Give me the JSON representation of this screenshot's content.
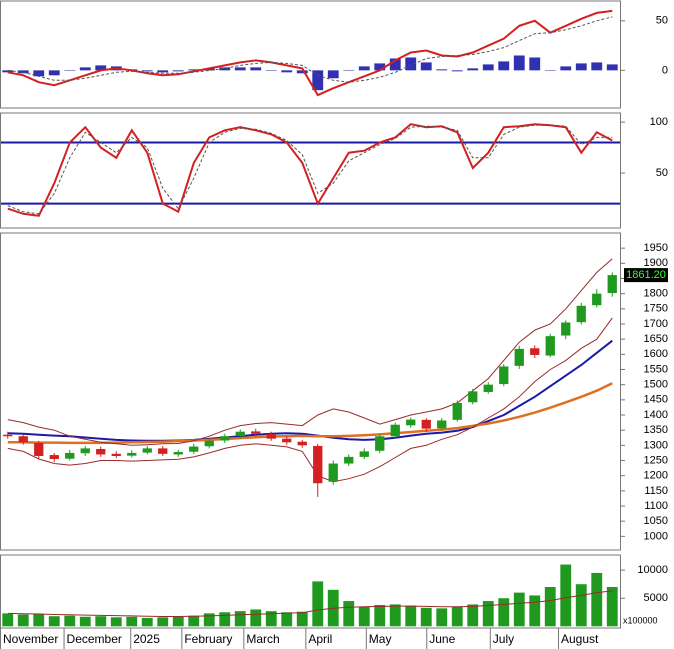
{
  "chart_data": [
    {
      "type": "macd",
      "ylim": [
        -38,
        70
      ],
      "yticks": [
        0,
        50
      ],
      "series": [
        {
          "color": "#d42020",
          "values": [
            -2,
            -5,
            -12,
            -15,
            -10,
            -5,
            0,
            2,
            0,
            -3,
            -5,
            -4,
            -1,
            2,
            5,
            8,
            10,
            8,
            5,
            2,
            -25,
            -18,
            -12,
            -6,
            0,
            10,
            18,
            20,
            15,
            14,
            18,
            25,
            32,
            45,
            50,
            38,
            45,
            52,
            58,
            60
          ]
        },
        {
          "color": "#555555",
          "values": [
            0,
            -2,
            -6,
            -10,
            -10,
            -8,
            -5,
            -2,
            -1,
            -2,
            -3,
            -3,
            -2,
            0,
            2,
            5,
            7,
            8,
            7,
            5,
            -5,
            -10,
            -12,
            -10,
            -7,
            -2,
            5,
            12,
            14,
            15,
            16,
            19,
            23,
            30,
            37,
            38,
            41,
            45,
            50,
            54
          ]
        }
      ],
      "histogram": {
        "color": "#3030b0",
        "values": [
          -2,
          -3,
          -6,
          -5,
          0,
          3,
          5,
          4,
          1,
          -1,
          -2,
          -1,
          1,
          2,
          3,
          3,
          3,
          0,
          -2,
          -3,
          -20,
          -8,
          0,
          4,
          7,
          12,
          13,
          8,
          1,
          -1,
          2,
          6,
          9,
          15,
          13,
          0,
          4,
          7,
          8,
          6
        ]
      }
    },
    {
      "type": "stochastic",
      "ylim": [
        -4,
        109
      ],
      "yticks": [
        50,
        100
      ],
      "levels": [
        80,
        20
      ],
      "level_color": "#1a1aa8",
      "series": [
        {
          "color": "#d42020",
          "values": [
            15,
            10,
            8,
            40,
            80,
            95,
            75,
            65,
            92,
            70,
            20,
            12,
            60,
            85,
            92,
            95,
            92,
            88,
            80,
            60,
            20,
            45,
            70,
            72,
            80,
            85,
            98,
            95,
            96,
            90,
            55,
            70,
            95,
            96,
            98,
            97,
            95,
            70,
            90,
            82
          ]
        },
        {
          "color": "#555555",
          "values": [
            18,
            12,
            10,
            30,
            65,
            90,
            80,
            70,
            85,
            75,
            35,
            15,
            45,
            80,
            90,
            94,
            93,
            89,
            82,
            68,
            30,
            40,
            62,
            70,
            78,
            84,
            95,
            96,
            95,
            92,
            65,
            65,
            88,
            95,
            97,
            97,
            96,
            78,
            85,
            85
          ]
        }
      ]
    },
    {
      "type": "candlestick",
      "ylim": [
        955,
        2000
      ],
      "yticks": [
        1000,
        1050,
        1100,
        1150,
        1200,
        1250,
        1300,
        1350,
        1400,
        1450,
        1500,
        1550,
        1600,
        1650,
        1700,
        1750,
        1800,
        1850,
        1900,
        1950
      ],
      "up_color": "#1f9a1f",
      "down_color": "#d42020",
      "open": [
        1335,
        1330,
        1308,
        1268,
        1256,
        1274,
        1288,
        1272,
        1266,
        1276,
        1290,
        1270,
        1279,
        1297,
        1316,
        1331,
        1346,
        1338,
        1322,
        1312,
        1298,
        1180,
        1240,
        1262,
        1282,
        1330,
        1366,
        1384,
        1356,
        1384,
        1442,
        1476,
        1502,
        1562,
        1620,
        1596,
        1662,
        1706,
        1762,
        1802
      ],
      "high": [
        1345,
        1338,
        1315,
        1275,
        1285,
        1298,
        1296,
        1280,
        1284,
        1298,
        1298,
        1285,
        1305,
        1322,
        1338,
        1352,
        1355,
        1345,
        1330,
        1318,
        1305,
        1250,
        1270,
        1290,
        1338,
        1375,
        1392,
        1390,
        1390,
        1448,
        1486,
        1508,
        1568,
        1628,
        1630,
        1668,
        1712,
        1770,
        1815,
        1870
      ],
      "low": [
        1322,
        1302,
        1255,
        1245,
        1250,
        1265,
        1262,
        1258,
        1260,
        1270,
        1265,
        1262,
        1272,
        1290,
        1308,
        1322,
        1330,
        1315,
        1302,
        1292,
        1130,
        1170,
        1232,
        1255,
        1275,
        1322,
        1358,
        1345,
        1350,
        1378,
        1435,
        1470,
        1495,
        1552,
        1588,
        1590,
        1650,
        1698,
        1755,
        1790
      ],
      "close": [
        1330,
        1310,
        1265,
        1255,
        1275,
        1290,
        1270,
        1265,
        1275,
        1290,
        1272,
        1278,
        1296,
        1315,
        1330,
        1345,
        1338,
        1322,
        1310,
        1300,
        1175,
        1240,
        1262,
        1280,
        1330,
        1368,
        1385,
        1355,
        1382,
        1440,
        1478,
        1500,
        1560,
        1618,
        1598,
        1660,
        1705,
        1760,
        1800,
        1861.2
      ],
      "last_price": {
        "value": 1861.2,
        "label": "1861.20"
      },
      "series": [
        {
          "color": "#1a1aa8",
          "width": 2,
          "values": [
            1340,
            1338,
            1335,
            1332,
            1330,
            1326,
            1322,
            1318,
            1316,
            1315,
            1315,
            1316,
            1318,
            1322,
            1326,
            1330,
            1335,
            1338,
            1340,
            1338,
            1332,
            1325,
            1320,
            1318,
            1320,
            1325,
            1332,
            1338,
            1342,
            1348,
            1360,
            1380,
            1400,
            1430,
            1460,
            1495,
            1530,
            1565,
            1605,
            1645
          ]
        },
        {
          "color": "#e07020",
          "width": 2.5,
          "values": [
            1310,
            1310,
            1309,
            1309,
            1308,
            1308,
            1308,
            1309,
            1310,
            1311,
            1312,
            1314,
            1316,
            1318,
            1321,
            1324,
            1327,
            1329,
            1330,
            1331,
            1330,
            1330,
            1331,
            1333,
            1336,
            1340,
            1344,
            1348,
            1352,
            1357,
            1364,
            1372,
            1382,
            1394,
            1408,
            1424,
            1442,
            1460,
            1480,
            1505
          ]
        },
        {
          "color": "#9a2a2a",
          "width": 1,
          "values": [
            1385,
            1375,
            1360,
            1350,
            1330,
            1320,
            1310,
            1305,
            1300,
            1302,
            1305,
            1306,
            1315,
            1330,
            1350,
            1365,
            1372,
            1375,
            1370,
            1365,
            1400,
            1420,
            1410,
            1390,
            1370,
            1385,
            1400,
            1410,
            1420,
            1440,
            1480,
            1520,
            1580,
            1640,
            1680,
            1700,
            1750,
            1810,
            1870,
            1915
          ]
        },
        {
          "color": "#9a2a2a",
          "width": 1,
          "values": [
            1290,
            1280,
            1255,
            1240,
            1235,
            1240,
            1250,
            1250,
            1248,
            1250,
            1252,
            1254,
            1262,
            1275,
            1290,
            1300,
            1305,
            1300,
            1295,
            1280,
            1200,
            1180,
            1190,
            1205,
            1230,
            1260,
            1290,
            1300,
            1320,
            1335,
            1360,
            1390,
            1420,
            1460,
            1510,
            1550,
            1580,
            1620,
            1650,
            1720
          ]
        }
      ]
    },
    {
      "type": "volume",
      "ylim": [
        -300,
        12700
      ],
      "yticks": [
        5000,
        10000
      ],
      "unit_label": "x100000",
      "color": "#1f9a1f",
      "values": [
        2300,
        2100,
        2200,
        1800,
        1900,
        1700,
        1800,
        1600,
        1700,
        1500,
        1600,
        1700,
        1900,
        2300,
        2500,
        2700,
        3000,
        2700,
        2500,
        2600,
        8000,
        6500,
        4500,
        3500,
        3800,
        3900,
        3700,
        3300,
        3200,
        3500,
        3900,
        4500,
        5000,
        6000,
        5500,
        7000,
        11000,
        7500,
        9500,
        7000
      ],
      "series": [
        {
          "color": "#9a2a2a",
          "width": 1,
          "values": [
            2300,
            2250,
            2200,
            2100,
            2050,
            2000,
            1950,
            1900,
            1850,
            1800,
            1750,
            1750,
            1800,
            1850,
            1950,
            2050,
            2150,
            2250,
            2350,
            2400,
            2900,
            3200,
            3400,
            3500,
            3550,
            3600,
            3600,
            3550,
            3500,
            3500,
            3550,
            3700,
            3900,
            4100,
            4300,
            4600,
            5100,
            5500,
            6000,
            6300
          ]
        }
      ],
      "xlim": [
        0,
        40
      ],
      "xticks": [
        {
          "value": 0,
          "label": "November"
        },
        {
          "value": 4.1,
          "label": "December"
        },
        {
          "value": 8.4,
          "label": "2025"
        },
        {
          "value": 11.7,
          "label": "February"
        },
        {
          "value": 15.7,
          "label": "March"
        },
        {
          "value": 19.7,
          "label": "April"
        },
        {
          "value": 23.6,
          "label": "May"
        },
        {
          "value": 27.5,
          "label": "June"
        },
        {
          "value": 31.6,
          "label": "July"
        },
        {
          "value": 36,
          "label": "August"
        }
      ]
    }
  ]
}
